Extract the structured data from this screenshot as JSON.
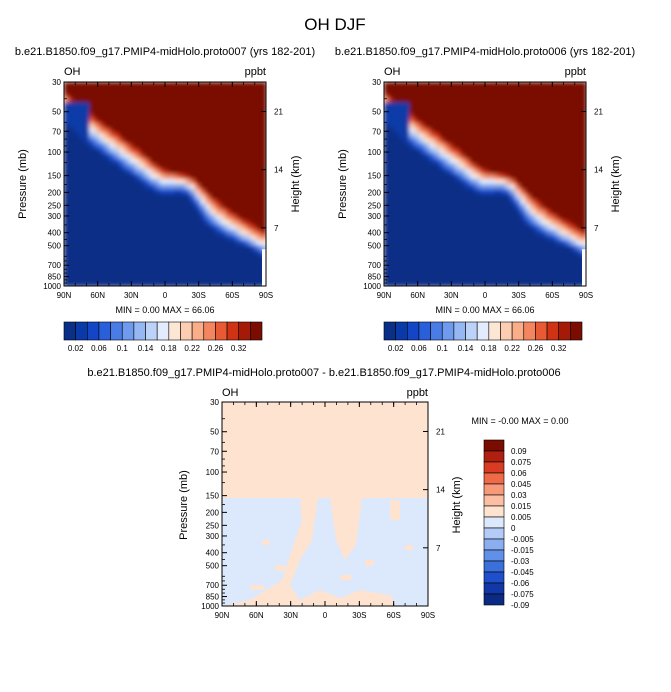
{
  "page_title": "OH DJF",
  "colors": {
    "blue_scale": [
      "#0a2f87",
      "#0a3aa8",
      "#1246c6",
      "#2a5fdc",
      "#4a7ce6",
      "#6f9bee",
      "#95b7f3",
      "#bcd2f8",
      "#e3ecfc",
      "#fde6d4",
      "#fccdb0",
      "#f9ad88",
      "#f3865e",
      "#e85a34",
      "#cf3314",
      "#a51a07",
      "#7a0c02"
    ]
  },
  "chart_data": [
    {
      "type": "heatmap",
      "title": "b.e21.B1850.f09_g17.PMIP4-midHolo.proto007 (yrs 182-201)",
      "left_label": "OH",
      "right_label": "ppbt",
      "ylabel": "Pressure (mb)",
      "ylabel_right": "Height (km)",
      "x_ticks": [
        "90N",
        "60N",
        "30N",
        "0",
        "30S",
        "60S",
        "90S"
      ],
      "y_ticks": [
        "30",
        "50",
        "70",
        "100",
        "150",
        "200",
        "250",
        "300",
        "400",
        "500",
        "700",
        "850",
        "1000"
      ],
      "y_ticks_right": [
        "21",
        "14",
        "7"
      ],
      "y_scale": "log",
      "minmax_text": "MIN =   0.00   MAX =   66.06",
      "colorbar_labels": [
        "0.02",
        "0.06",
        "0.1",
        "0.14",
        "0.18",
        "0.22",
        "0.26",
        "0.32"
      ],
      "contour_levels": [
        0.02,
        0.04,
        0.06,
        0.08,
        0.1,
        0.12,
        0.14,
        0.16,
        0.18,
        0.2,
        0.22,
        0.24,
        0.26,
        0.28,
        0.3,
        0.32
      ]
    },
    {
      "type": "heatmap",
      "title": "b.e21.B1850.f09_g17.PMIP4-midHolo.proto006 (yrs 182-201)",
      "left_label": "OH",
      "right_label": "ppbt",
      "ylabel": "Pressure (mb)",
      "ylabel_right": "Height (km)",
      "x_ticks": [
        "90N",
        "60N",
        "30N",
        "0",
        "30S",
        "60S",
        "90S"
      ],
      "y_ticks": [
        "30",
        "50",
        "70",
        "100",
        "150",
        "200",
        "250",
        "300",
        "400",
        "500",
        "700",
        "850",
        "1000"
      ],
      "y_ticks_right": [
        "21",
        "14",
        "7"
      ],
      "y_scale": "log",
      "minmax_text": "MIN =   0.00   MAX =   66.06",
      "colorbar_labels": [
        "0.02",
        "0.06",
        "0.1",
        "0.14",
        "0.18",
        "0.22",
        "0.26",
        "0.32"
      ],
      "contour_levels": [
        0.02,
        0.04,
        0.06,
        0.08,
        0.1,
        0.12,
        0.14,
        0.16,
        0.18,
        0.2,
        0.22,
        0.24,
        0.26,
        0.28,
        0.3,
        0.32
      ]
    },
    {
      "type": "heatmap",
      "title": "b.e21.B1850.f09_g17.PMIP4-midHolo.proto007 - b.e21.B1850.f09_g17.PMIP4-midHolo.proto006",
      "left_label": "OH",
      "right_label": "ppbt",
      "ylabel": "Pressure (mb)",
      "ylabel_right": "Height (km)",
      "x_ticks": [
        "90N",
        "60N",
        "30N",
        "0",
        "30S",
        "60S",
        "90S"
      ],
      "y_ticks": [
        "30",
        "50",
        "70",
        "100",
        "150",
        "200",
        "250",
        "300",
        "400",
        "500",
        "700",
        "850",
        "1000"
      ],
      "y_ticks_right": [
        "21",
        "14",
        "7"
      ],
      "y_scale": "log",
      "minmax_text": "MIN =  -0.00   MAX =   0.00",
      "colorbar_labels": [
        "0.09",
        "0.075",
        "0.06",
        "0.045",
        "0.03",
        "0.015",
        "0.005",
        "0",
        "-0.005",
        "-0.015",
        "-0.03",
        "-0.045",
        "-0.06",
        "-0.075",
        "-0.09"
      ],
      "colorbar_colors": [
        "#7a0c02",
        "#b02010",
        "#d83c22",
        "#ee6a48",
        "#f79a7a",
        "#fbbfa3",
        "#fde3d0",
        "#dce8fb",
        "#b3cbf6",
        "#8aaef0",
        "#6190e8",
        "#3a6fdc",
        "#1f4fcb",
        "#1238a8",
        "#0a2a84"
      ]
    }
  ]
}
